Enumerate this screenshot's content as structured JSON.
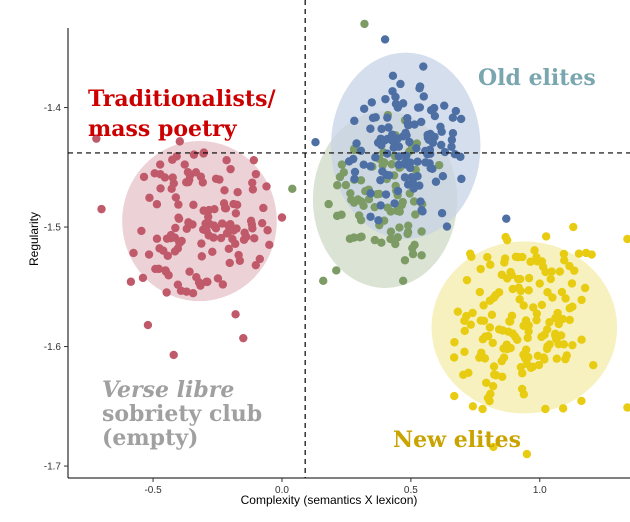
{
  "chart_data": {
    "type": "scatter",
    "xlabel": "Complexity (semantics X lexicon)",
    "ylabel": "Regularity",
    "xlim": [
      -0.83,
      1.35
    ],
    "ylim": [
      -1.71,
      -1.31
    ],
    "x_ticks": [
      -0.5,
      0.0,
      0.5,
      1.0
    ],
    "x_tick_labels": [
      "-0.5",
      "0.0",
      "0.5",
      "1.0"
    ],
    "y_ticks": [
      -1.4,
      -1.5,
      -1.6,
      -1.7
    ],
    "y_tick_labels": [
      "-1.4",
      "-1.5",
      "-1.6",
      "-1.7"
    ],
    "grid": false,
    "reference_lines": {
      "vertical_x": 0.09,
      "horizontal_y": -1.438
    },
    "annotations": {
      "traditionalists_line1": "Traditionalists/",
      "traditionalists_line2": "mass poetry",
      "old_elites": "Old elites",
      "new_elites": "New elites",
      "verse_libre_line1": "Verse libre",
      "verse_libre_line2": "sobriety club",
      "verse_libre_line3": "(empty)"
    },
    "colors": {
      "red": "#c05a6a",
      "green": "#7d9b65",
      "blue": "#4d6fa4",
      "yellow": "#e8cc12",
      "traditionalists_text": "#cc0000",
      "old_elites_text": "#7aa6b0",
      "new_elites_text": "#c9a300",
      "verse_libre_text": "#a0a0a0"
    },
    "groups": [
      {
        "name": "red",
        "center": [
          -0.32,
          -1.495
        ],
        "radius": [
          0.3,
          0.067
        ],
        "n": 130,
        "spread": [
          0.14,
          0.034
        ],
        "fill": "#e6c3c8",
        "points": [
          [
            -0.72,
            -1.426
          ],
          [
            -0.7,
            -1.485
          ],
          [
            -0.52,
            -1.582
          ],
          [
            -0.42,
            -1.607
          ],
          [
            -0.18,
            -1.573
          ],
          [
            -0.15,
            -1.593
          ],
          [
            0.0,
            -1.492
          ],
          [
            -0.06,
            -1.466
          ]
        ]
      },
      {
        "name": "green",
        "center": [
          0.4,
          -1.477
        ],
        "radius": [
          0.28,
          0.074
        ],
        "n": 85,
        "spread": [
          0.11,
          0.036
        ],
        "fill": "#cfdbc6",
        "points": [
          [
            0.32,
            -1.33
          ],
          [
            0.16,
            -1.545
          ],
          [
            0.47,
            -1.545
          ],
          [
            0.04,
            -1.468
          ]
        ]
      },
      {
        "name": "blue",
        "center": [
          0.48,
          -1.432
        ],
        "radius": [
          0.29,
          0.078
        ],
        "n": 120,
        "spread": [
          0.11,
          0.034
        ],
        "fill": "#c7d3e6",
        "points": [
          [
            0.4,
            -1.343
          ],
          [
            0.13,
            -1.429
          ],
          [
            0.87,
            -1.493
          ]
        ]
      },
      {
        "name": "yellow",
        "center": [
          0.94,
          -1.584
        ],
        "radius": [
          0.36,
          0.072
        ],
        "n": 160,
        "spread": [
          0.15,
          0.04
        ],
        "fill": "#f3ecaa",
        "points": [
          [
            1.34,
            -1.51
          ],
          [
            1.34,
            -1.651
          ],
          [
            1.13,
            -1.5
          ],
          [
            0.95,
            -1.69
          ],
          [
            0.82,
            -1.684
          ]
        ]
      }
    ]
  }
}
